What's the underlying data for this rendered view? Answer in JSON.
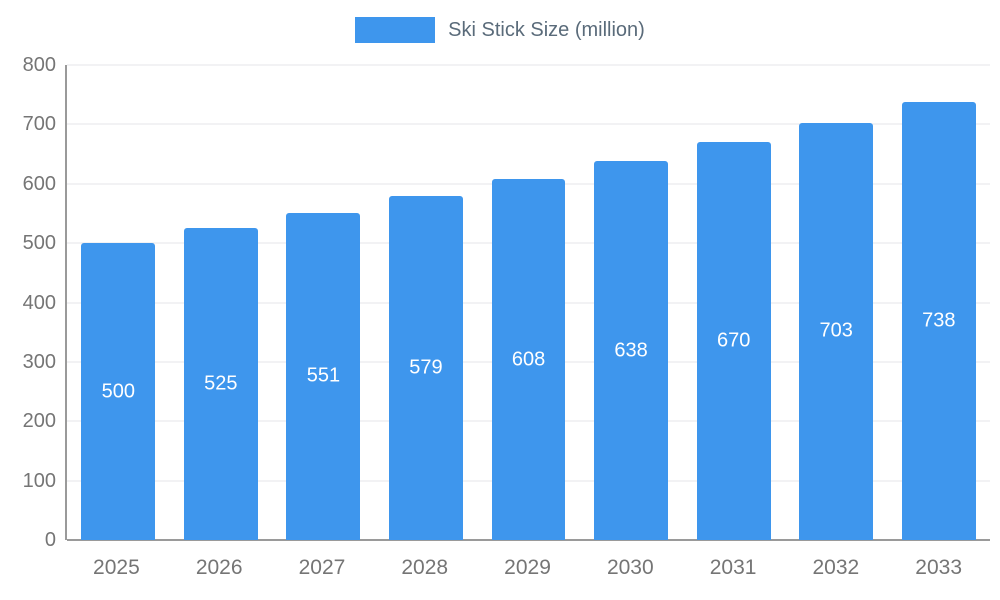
{
  "chart_data": {
    "type": "bar",
    "title": "Ski Stick Size (million)",
    "categories": [
      "2025",
      "2026",
      "2027",
      "2028",
      "2029",
      "2030",
      "2031",
      "2032",
      "2033"
    ],
    "values": [
      500,
      525,
      551,
      579,
      608,
      638,
      670,
      703,
      738
    ],
    "xlabel": "",
    "ylabel": "",
    "ylim": [
      0,
      800
    ],
    "ytick_step": 100,
    "grid": true,
    "legend_position": "top",
    "colors": {
      "bar": "#3E96ED",
      "bar_value_label": "#FFFFFF",
      "axis_text": "#757575",
      "legend_text": "#5A6B7A",
      "gridline": "#E5E5EA",
      "axis_line": "#9A9A9A",
      "background": "#FFFFFF"
    }
  }
}
